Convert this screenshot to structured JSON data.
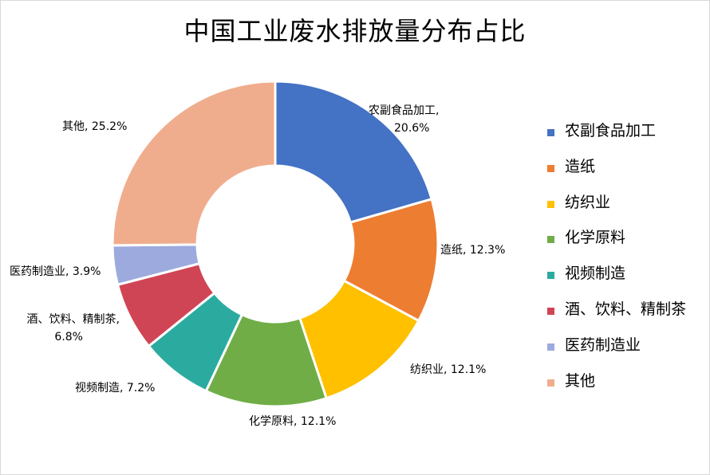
{
  "chart_data": {
    "type": "pie",
    "variant": "doughnut",
    "title": "中国工业废水排放量分布占比",
    "legend_position": "right",
    "series": [
      {
        "name": "农副食品加工",
        "value": 20.6,
        "label": "农副食品加工, 20.6%",
        "color": "#4472C4"
      },
      {
        "name": "造纸",
        "value": 12.3,
        "label": "造纸, 12.3%",
        "color": "#ED7D31"
      },
      {
        "name": "纺织业",
        "value": 12.1,
        "label": "纺织业, 12.1%",
        "color": "#FFC000"
      },
      {
        "name": "化学原料",
        "value": 12.1,
        "label": "化学原料, 12.1%",
        "color": "#70AD47"
      },
      {
        "name": "视频制造",
        "value": 7.2,
        "label": "视频制造, 7.2%",
        "color": "#2BABA0"
      },
      {
        "name": "酒、饮料、精制茶",
        "value": 6.8,
        "label": "酒、饮料、精制茶, 6.8%",
        "color": "#D04555"
      },
      {
        "name": "医药制造业",
        "value": 3.9,
        "label": "医药制造业, 3.9%",
        "color": "#9CAADE"
      },
      {
        "name": "其他",
        "value": 25.2,
        "label": "其他, 25.2%",
        "color": "#F0AD8E"
      }
    ]
  }
}
